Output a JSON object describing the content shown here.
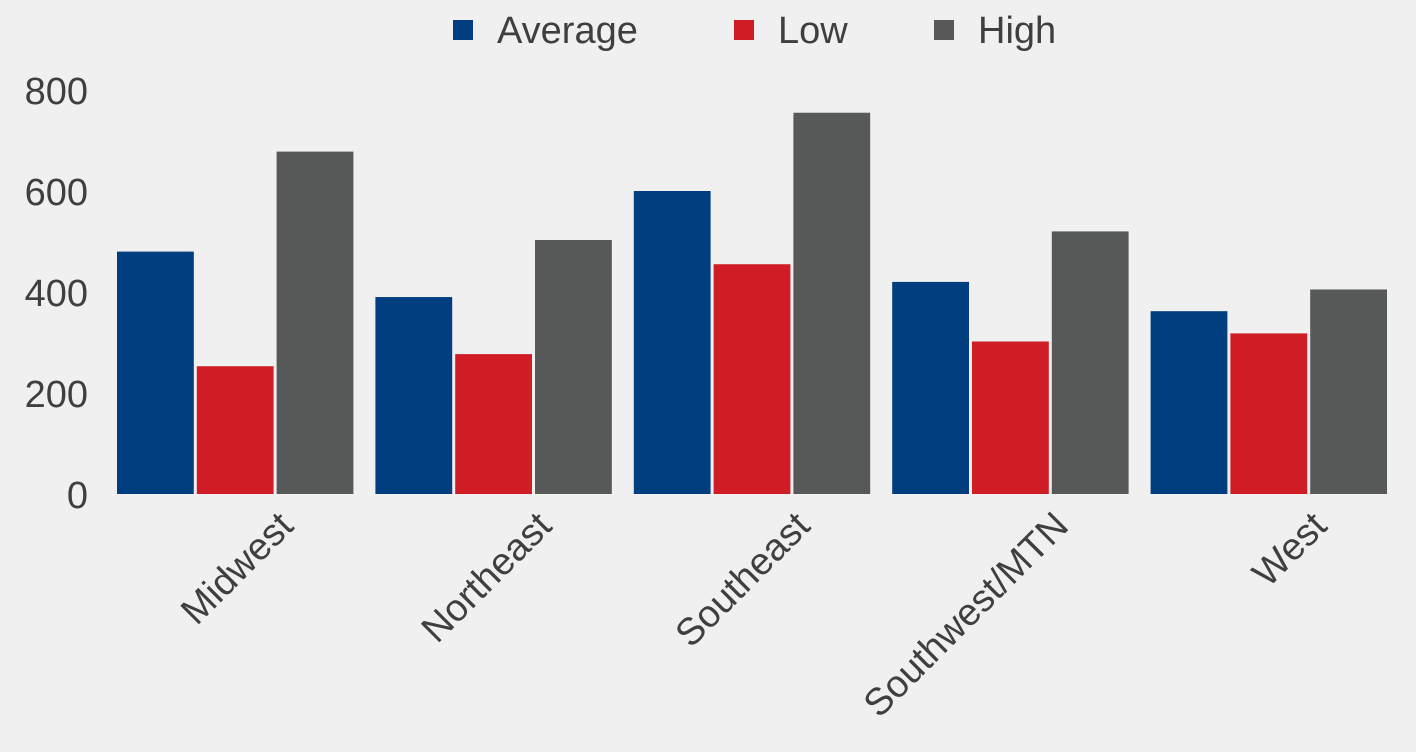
{
  "chart_data": {
    "type": "bar",
    "categories": [
      "Midwest",
      "Northeast",
      "Southeast",
      "Southwest/MTN",
      "West"
    ],
    "series": [
      {
        "name": "Average",
        "color": "#003e80",
        "values": [
          480,
          390,
          600,
          420,
          362
        ]
      },
      {
        "name": "Low",
        "color": "#d01c24",
        "values": [
          253,
          277,
          455,
          302,
          318
        ]
      },
      {
        "name": "High",
        "color": "#565958",
        "values": [
          678,
          503,
          755,
          520,
          405
        ]
      }
    ],
    "ylim": [
      0,
      800
    ],
    "yticks": [
      "0",
      "200",
      "400",
      "600",
      "800"
    ],
    "grid": false,
    "legend_position": "top-center"
  }
}
